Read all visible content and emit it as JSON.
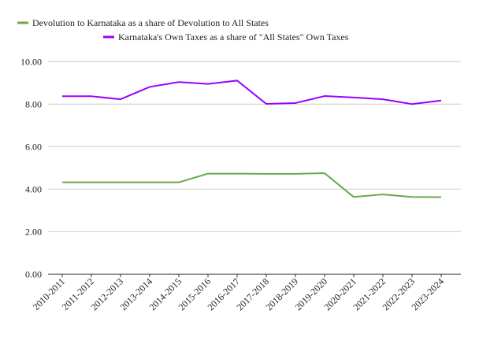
{
  "chart_data": {
    "type": "line",
    "title": "",
    "xlabel": "",
    "ylabel": "",
    "ylim": [
      0,
      10
    ],
    "yticks": [
      "0.00",
      "2.00",
      "4.00",
      "6.00",
      "8.00",
      "10.00"
    ],
    "grid": true,
    "legend_position": "top",
    "categories": [
      "2010-2011",
      "2011-2012",
      "2012-2013",
      "2013-2014",
      "2014-2015",
      "2015-2016",
      "2016-2017",
      "2017-2018",
      "2018-2019",
      "2019-2020",
      "2020-2021",
      "2021-2022",
      "2022-2023",
      "2023-2024"
    ],
    "series": [
      {
        "name": "Devolution to Karnataka as a share of Devolution to All States",
        "color": "#6aa84f",
        "values": [
          4.32,
          4.32,
          4.32,
          4.32,
          4.32,
          4.73,
          4.73,
          4.72,
          4.72,
          4.75,
          3.63,
          3.75,
          3.63,
          3.62
        ]
      },
      {
        "name": "Karnataka's Own Taxes as a share of \"All States\" Own Taxes",
        "color": "#9900ff",
        "values": [
          8.37,
          8.37,
          8.23,
          8.81,
          9.04,
          8.95,
          9.11,
          8.01,
          8.05,
          8.38,
          8.31,
          8.23,
          8.0,
          8.17
        ]
      }
    ]
  }
}
